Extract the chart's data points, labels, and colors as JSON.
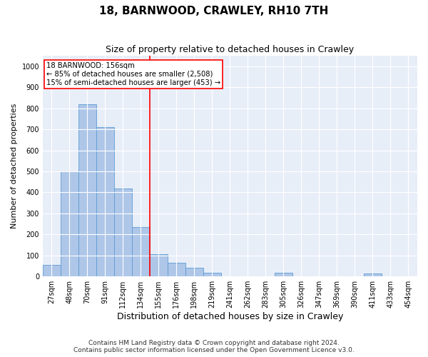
{
  "title1": "18, BARNWOOD, CRAWLEY, RH10 7TH",
  "title2": "Size of property relative to detached houses in Crawley",
  "xlabel": "Distribution of detached houses by size in Crawley",
  "ylabel": "Number of detached properties",
  "footnote1": "Contains HM Land Registry data © Crown copyright and database right 2024.",
  "footnote2": "Contains public sector information licensed under the Open Government Licence v3.0.",
  "categories": [
    "27sqm",
    "48sqm",
    "70sqm",
    "91sqm",
    "112sqm",
    "134sqm",
    "155sqm",
    "176sqm",
    "198sqm",
    "219sqm",
    "241sqm",
    "262sqm",
    "283sqm",
    "305sqm",
    "326sqm",
    "347sqm",
    "369sqm",
    "390sqm",
    "411sqm",
    "433sqm",
    "454sqm"
  ],
  "values": [
    55,
    500,
    820,
    710,
    420,
    235,
    105,
    65,
    40,
    18,
    0,
    0,
    0,
    18,
    0,
    0,
    0,
    0,
    15,
    0,
    0
  ],
  "bar_color": "#aec6e8",
  "bar_edge_color": "#5b9bd5",
  "vline_index": 6,
  "vline_color": "red",
  "annotation_text": "18 BARNWOOD: 156sqm\n← 85% of detached houses are smaller (2,508)\n15% of semi-detached houses are larger (453) →",
  "annotation_box_color": "white",
  "annotation_box_edge_color": "red",
  "ylim": [
    0,
    1050
  ],
  "yticks": [
    0,
    100,
    200,
    300,
    400,
    500,
    600,
    700,
    800,
    900,
    1000
  ],
  "bg_color": "#e8eef8",
  "grid_color": "white",
  "title1_fontsize": 11,
  "title2_fontsize": 9,
  "xlabel_fontsize": 9,
  "ylabel_fontsize": 8,
  "tick_fontsize": 7,
  "footnote_fontsize": 6.5
}
